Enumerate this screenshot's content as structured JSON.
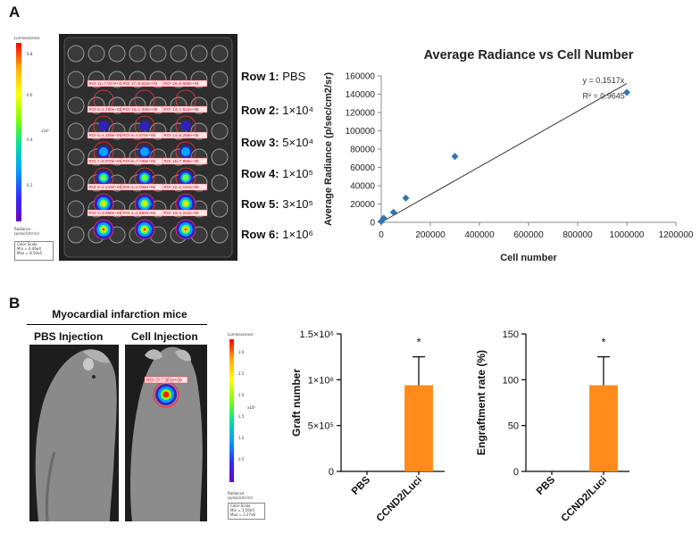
{
  "panel_a": {
    "label": "A",
    "rows": [
      {
        "name": "Row 1:",
        "value": "PBS"
      },
      {
        "name": "Row 2:",
        "value": "1×10⁴"
      },
      {
        "name": "Row 3:",
        "value": "5×10⁴"
      },
      {
        "name": "Row 4:",
        "value": "1×10⁵"
      },
      {
        "name": "Row 5:",
        "value": "3×10⁵"
      },
      {
        "name": "Row 6:",
        "value": "1×10⁶"
      }
    ],
    "scale": {
      "title": "Luminescence",
      "ticks": [
        "0.8",
        "0.6",
        "0.4",
        "0.2"
      ],
      "exponent": "x10⁶",
      "unit_line1": "Radiance",
      "unit_line2": "(p/sec/cm²/sr)",
      "color_scale_label": "Color Scale",
      "min": "Min = 4.46e4",
      "max": "Max = 8.50e5"
    },
    "roi_labels": [
      "ROI 11=7.027e+04",
      "ROI 17=8.622e+04",
      "ROI 18=8.668e+04",
      "ROI 9=1.280e+05",
      "ROI 15=1.330e+05",
      "ROI 13=1.524e+05",
      "ROI 5=4.309e+05",
      "ROI 6=4.874e+05",
      "ROI 14=5.268e+05",
      "ROI 7=8.970e+05",
      "ROI 8=7.769e+05",
      "ROI 16=7.959e+05",
      "ROI 3=2.243e+06",
      "ROI 4=2.008e+06",
      "ROI 12=2.154e+06",
      "ROI 1=3.866e+06",
      "ROI 2=3.890e+06",
      "ROI 10=4.224e+06"
    ]
  },
  "chart_data": [
    {
      "type": "scatter",
      "title": "Average Radiance vs Cell Number",
      "xlabel": "Cell number",
      "ylabel": "Average Radiance (p/sec/cm2/sr)",
      "x_ticks": [
        "0",
        "200000",
        "400000",
        "600000",
        "800000",
        "1000000",
        "1200000"
      ],
      "y_ticks": [
        "0",
        "20000",
        "40000",
        "60000",
        "80000",
        "100000",
        "120000",
        "140000",
        "160000"
      ],
      "xlim": [
        0,
        1200000
      ],
      "ylim": [
        0,
        160000
      ],
      "grid": false,
      "points": [
        {
          "x": 0,
          "y": 1000
        },
        {
          "x": 10000,
          "y": 4500
        },
        {
          "x": 50000,
          "y": 11000
        },
        {
          "x": 100000,
          "y": 26500
        },
        {
          "x": 300000,
          "y": 72000
        },
        {
          "x": 1000000,
          "y": 142000
        }
      ],
      "trendline": {
        "slope": 0.1517,
        "x_range": [
          0,
          1000000
        ]
      },
      "annotation": {
        "equation": "y = 0.1517x",
        "r2": "R² = 0.9645"
      },
      "marker_color": "#2e75b6"
    },
    {
      "type": "bar",
      "ylabel": "Graft number",
      "categories": [
        "PBS",
        "CCND2/Luci"
      ],
      "values": [
        0,
        940000
      ],
      "errors": [
        0,
        310000
      ],
      "ylim": [
        0,
        1500000
      ],
      "y_ticks": [
        "0",
        "5×10⁵",
        "1×10⁶",
        "1.5×10⁶"
      ],
      "significance": "*",
      "bar_color": "#ff8c1a"
    },
    {
      "type": "bar",
      "ylabel": "Engraftment rate (%)",
      "categories": [
        "PBS",
        "CCND2/Luci"
      ],
      "values": [
        0,
        94
      ],
      "errors": [
        0,
        31
      ],
      "ylim": [
        0,
        150
      ],
      "y_ticks": [
        "0",
        "50",
        "100",
        "150"
      ],
      "significance": "*",
      "bar_color": "#ff8c1a"
    }
  ],
  "panel_b": {
    "label": "B",
    "group_title": "Myocardial infarction mice",
    "left_title": "PBS Injection",
    "right_title": "Cell Injection",
    "roi_label": "ROI 2=7.381e+06",
    "scale": {
      "title": "Luminescence",
      "ticks": [
        "3.0",
        "2.5",
        "2.0",
        "1.5",
        "1.0",
        "0.5"
      ],
      "exponent": "x10⁶",
      "unit_line1": "Radiance",
      "unit_line2": "(p/sec/cm²/sr)",
      "color_scale_label": "Color Scale",
      "min": "Min = 1.50e5",
      "max": "Max = 3.27e6"
    }
  }
}
